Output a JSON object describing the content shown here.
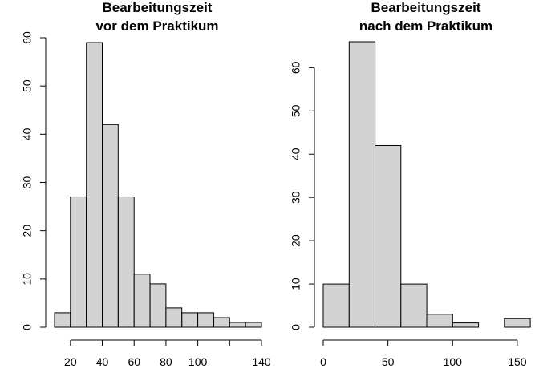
{
  "chart_data": [
    {
      "type": "bar",
      "chart_kind": "histogram",
      "title_lines": [
        "Bearbeitungszeit",
        "vor dem Praktikum"
      ],
      "xlabel": "",
      "ylabel": "",
      "bin_edges": [
        10,
        20,
        30,
        40,
        50,
        60,
        70,
        80,
        90,
        100,
        110,
        120,
        130,
        140
      ],
      "values": [
        3,
        27,
        59,
        42,
        27,
        11,
        9,
        4,
        3,
        3,
        2,
        1,
        1
      ],
      "xlim": [
        10,
        140
      ],
      "ylim": [
        0,
        60
      ],
      "x_ticks": [
        20,
        40,
        60,
        80,
        100,
        120,
        140
      ],
      "x_tick_labels": [
        "20",
        "40",
        "60",
        "80",
        "100",
        "",
        "140"
      ],
      "y_ticks": [
        0,
        10,
        20,
        30,
        40,
        50,
        60
      ],
      "y_tick_labels": [
        "0",
        "10",
        "20",
        "30",
        "40",
        "50",
        "60"
      ],
      "grid": false,
      "bar_color": "#d3d3d3"
    },
    {
      "type": "bar",
      "chart_kind": "histogram",
      "title_lines": [
        "Bearbeitungszeit",
        "nach dem Praktikum"
      ],
      "xlabel": "",
      "ylabel": "",
      "bin_edges": [
        0,
        20,
        40,
        60,
        80,
        100,
        120,
        140,
        160
      ],
      "values": [
        10,
        66,
        42,
        10,
        3,
        1,
        0,
        2
      ],
      "xlim": [
        0,
        160
      ],
      "ylim": [
        0,
        66
      ],
      "x_ticks": [
        0,
        50,
        100,
        150
      ],
      "x_tick_labels": [
        "0",
        "50",
        "100",
        "150"
      ],
      "y_ticks": [
        0,
        10,
        20,
        30,
        40,
        50,
        60
      ],
      "y_tick_labels": [
        "0",
        "10",
        "20",
        "30",
        "40",
        "50",
        "60"
      ],
      "grid": false,
      "bar_color": "#d3d3d3"
    }
  ]
}
